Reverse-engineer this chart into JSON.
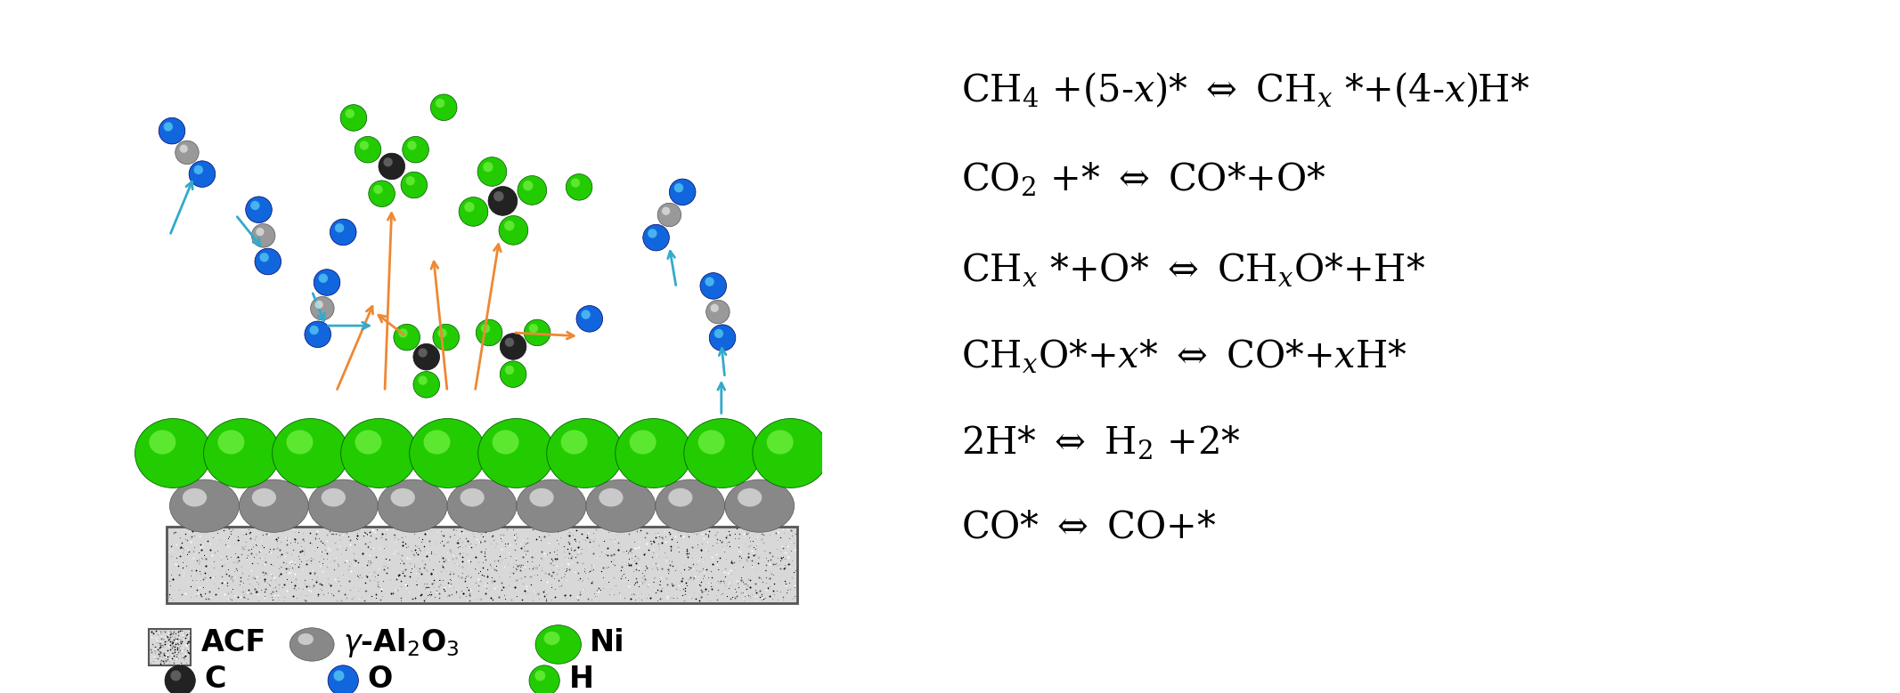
{
  "fig_width": 21.33,
  "fig_height": 7.79,
  "dpi": 100,
  "background_color": "#ffffff",
  "equations": [
    "CH$_4$ +(5-$x$)* $\\Leftrightarrow$ CH$_x$ *+(4-$x$)H*",
    "CO$_2$ +* $\\Leftrightarrow$ CO*+O*",
    "CH$_x$ *+O* $\\Leftrightarrow$ CH$_x$O*+H*",
    "CH$_x$O*+$x$* $\\Leftrightarrow$ CO*+$x$H*",
    "2H* $\\Leftrightarrow$ H$_2$ +2*",
    "CO* $\\Leftrightarrow$ CO+*"
  ],
  "eq_fontsize": 30,
  "legend_fontsize": 24,
  "colors": {
    "Ni": "#22cc00",
    "Al2O3": "#888888",
    "C_black": "#222222",
    "C_gray": "#999999",
    "O_blue": "#1166dd",
    "H_green": "#22cc00",
    "arrow_blue": "#33aacc",
    "arrow_orange": "#ee8833",
    "acf_face": "#d8d8d8",
    "acf_edge": "#555555"
  }
}
